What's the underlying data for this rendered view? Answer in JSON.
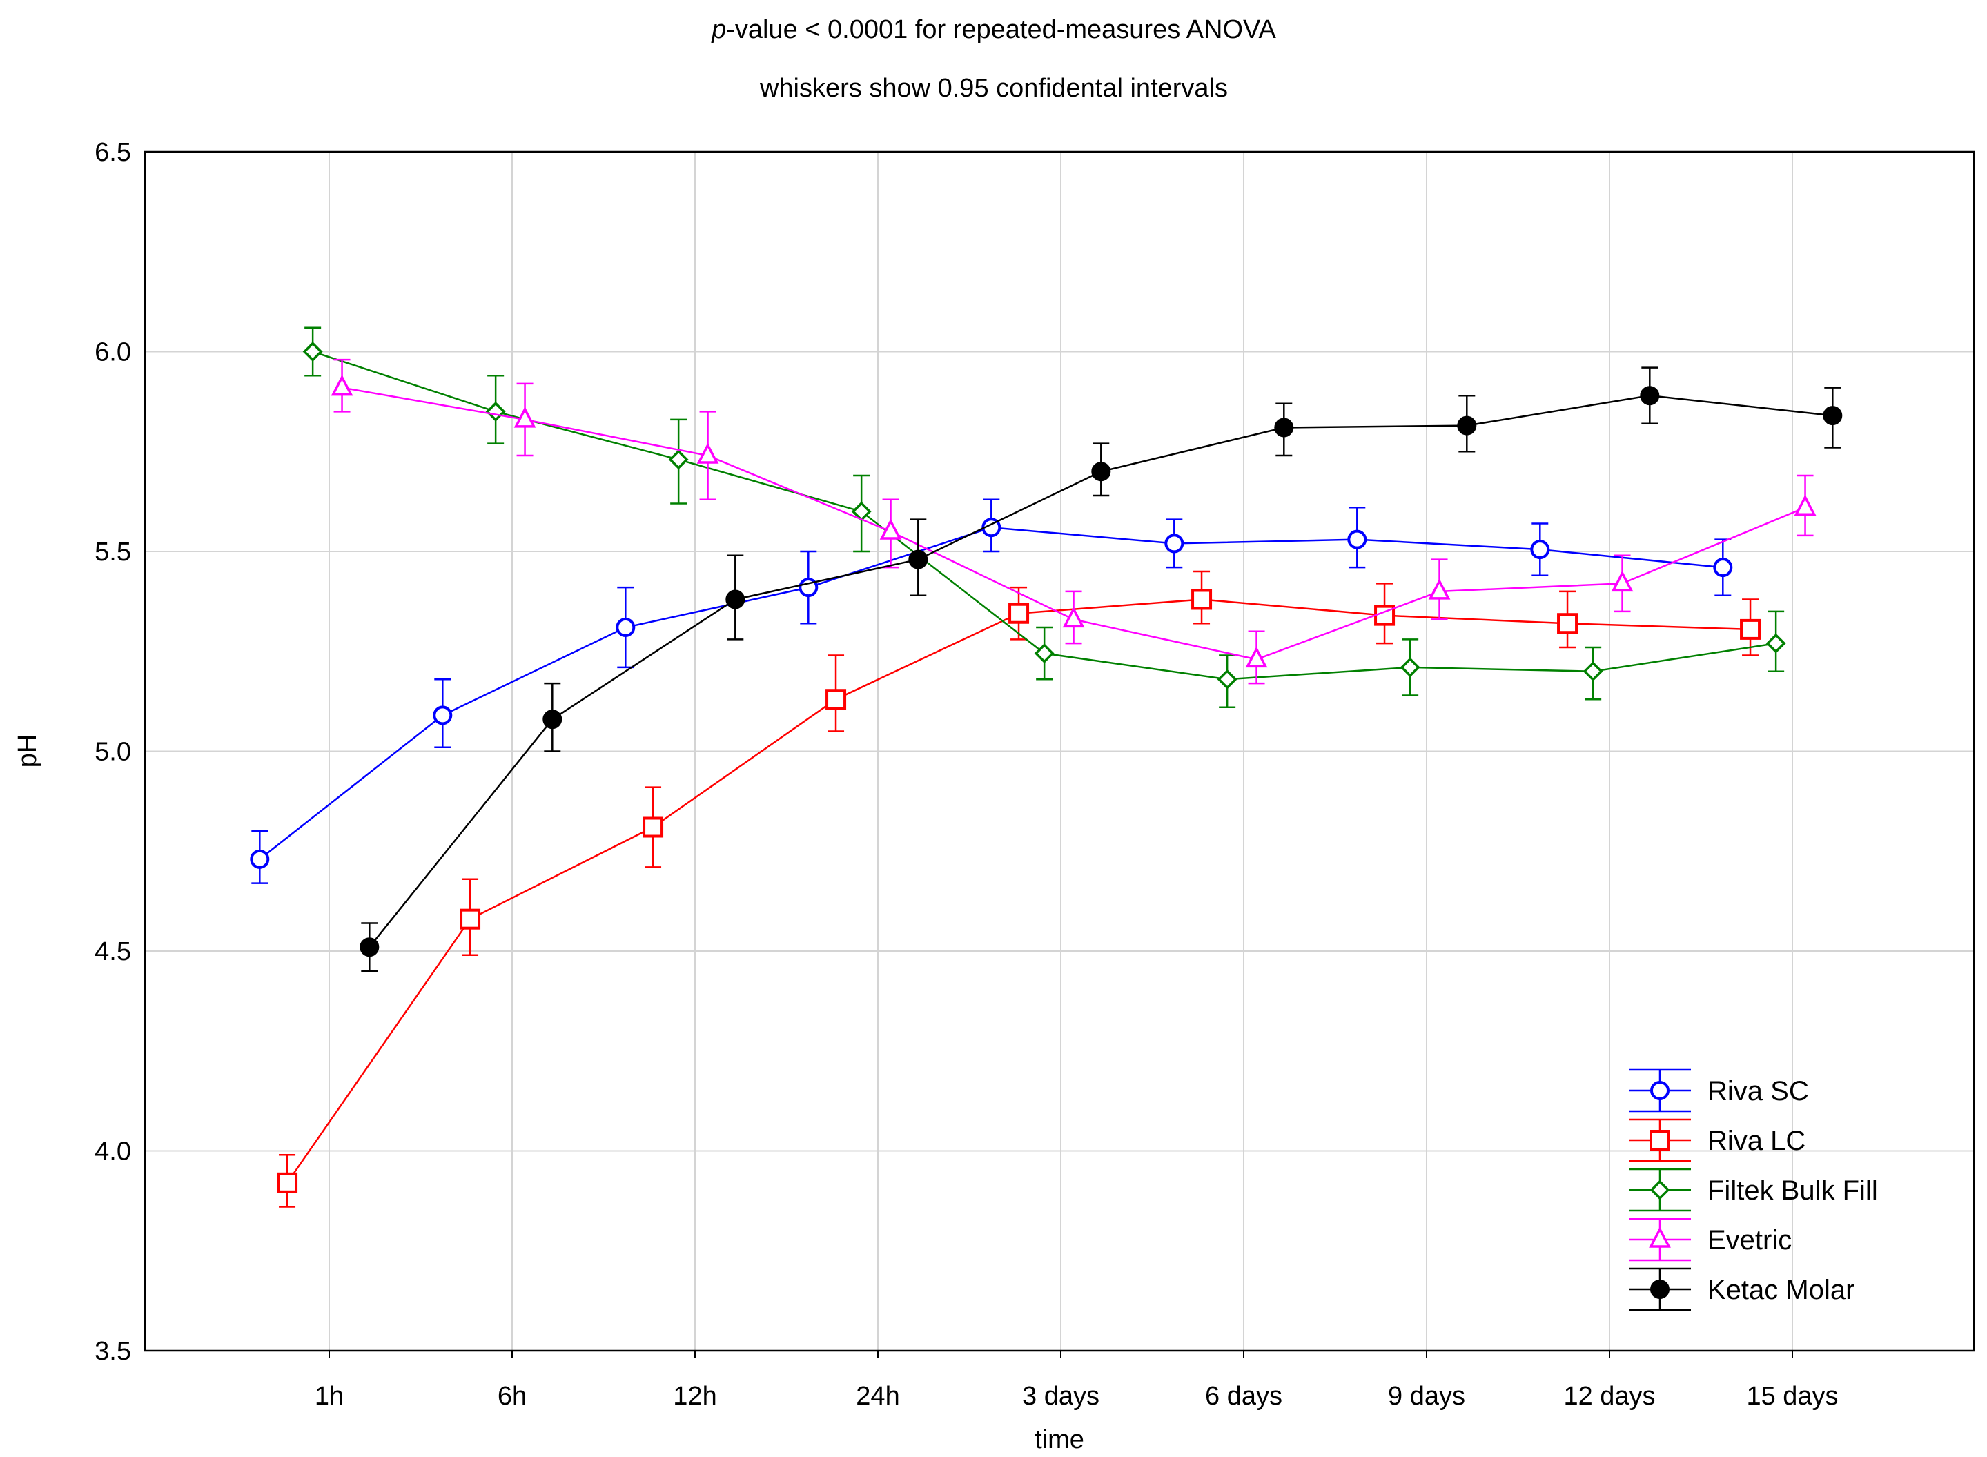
{
  "chart_data": {
    "type": "line",
    "title_italic": "p",
    "title_rest": "-value < 0.0001 for repeated-measures ANOVA",
    "subtitle": "whiskers show 0.95 confidental intervals",
    "xlabel": "time",
    "ylabel": "pH",
    "categories": [
      "1h",
      "6h",
      "12h",
      "24h",
      "3 days",
      "6 days",
      "9 days",
      "12 days",
      "15 days"
    ],
    "ylim": [
      3.5,
      6.5
    ],
    "yticks": [
      "6.5",
      "6.0",
      "5.5",
      "5.0",
      "4.5",
      "4.0",
      "3.5"
    ],
    "grid": true,
    "legend_position": "bottom-right",
    "series": [
      {
        "name": "Riva SC",
        "color": "#0000ff",
        "marker": "circle-open",
        "offset": -0.38,
        "values": [
          4.73,
          5.09,
          5.31,
          5.41,
          5.56,
          5.52,
          5.53,
          5.505,
          5.46
        ],
        "ci_low": [
          4.67,
          5.01,
          5.21,
          5.32,
          5.5,
          5.46,
          5.46,
          5.44,
          5.39
        ],
        "ci_high": [
          4.8,
          5.18,
          5.41,
          5.5,
          5.63,
          5.58,
          5.61,
          5.57,
          5.53
        ]
      },
      {
        "name": "Riva LC",
        "color": "#ff0000",
        "marker": "square-open",
        "offset": -0.23,
        "values": [
          3.92,
          4.58,
          4.81,
          5.13,
          5.345,
          5.38,
          5.34,
          5.32,
          5.305
        ],
        "ci_low": [
          3.86,
          4.49,
          4.71,
          5.05,
          5.28,
          5.32,
          5.27,
          5.26,
          5.24
        ],
        "ci_high": [
          3.99,
          4.68,
          4.91,
          5.24,
          5.41,
          5.45,
          5.42,
          5.4,
          5.38
        ]
      },
      {
        "name": "Filtek Bulk Fill",
        "color": "#008000",
        "marker": "diamond-open",
        "offset": -0.09,
        "values": [
          6.0,
          5.85,
          5.73,
          5.6,
          5.245,
          5.18,
          5.21,
          5.2,
          5.27
        ],
        "ci_low": [
          5.94,
          5.77,
          5.62,
          5.5,
          5.18,
          5.11,
          5.14,
          5.13,
          5.2
        ],
        "ci_high": [
          6.06,
          5.94,
          5.83,
          5.69,
          5.31,
          5.24,
          5.28,
          5.26,
          5.35
        ]
      },
      {
        "name": "Evetric",
        "color": "#ff00ff",
        "marker": "triangle-open",
        "offset": 0.07,
        "values": [
          5.91,
          5.83,
          5.74,
          5.55,
          5.33,
          5.23,
          5.4,
          5.42,
          5.61
        ],
        "ci_low": [
          5.85,
          5.74,
          5.63,
          5.46,
          5.27,
          5.17,
          5.33,
          5.35,
          5.54
        ],
        "ci_high": [
          5.98,
          5.92,
          5.85,
          5.63,
          5.4,
          5.3,
          5.48,
          5.49,
          5.69
        ]
      },
      {
        "name": "Ketac Molar",
        "color": "#000000",
        "marker": "circle-filled",
        "offset": 0.22,
        "values": [
          4.51,
          5.08,
          5.38,
          5.48,
          5.7,
          5.81,
          5.815,
          5.89,
          5.84
        ],
        "ci_low": [
          4.45,
          5.0,
          5.28,
          5.39,
          5.64,
          5.74,
          5.75,
          5.82,
          5.76
        ],
        "ci_high": [
          4.57,
          5.17,
          5.49,
          5.58,
          5.77,
          5.87,
          5.89,
          5.96,
          5.91
        ]
      }
    ]
  }
}
